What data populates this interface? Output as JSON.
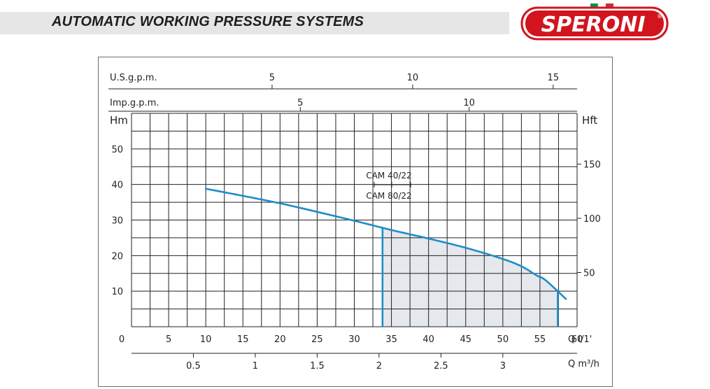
{
  "header": {
    "title": "AUTOMATIC WORKING PRESSURE SYSTEMS",
    "brand": "SPERONI",
    "registered_mark": "®"
  },
  "colors": {
    "curve": "#1f8cc8",
    "grid": "#222222",
    "shade": "#e5e8ec",
    "header_band": "#e6e6e6",
    "logo_red": "#d2141e",
    "flag_green": "#009246",
    "flag_red": "#ce2b37"
  },
  "chart_data": {
    "type": "line",
    "x_axis": {
      "unit_label": "Q l/1'",
      "range": [
        0,
        60
      ],
      "ticks": [
        0,
        5,
        10,
        15,
        20,
        25,
        30,
        35,
        40,
        45,
        50,
        55,
        60
      ]
    },
    "x_axis_m3h": {
      "unit_label": "Q m³/h",
      "ticks": [
        0.5,
        1,
        1.5,
        2,
        2.5,
        3
      ]
    },
    "top_axis_us": {
      "label": "U.S.g.p.m.",
      "ticks": [
        5,
        10,
        15
      ]
    },
    "top_axis_imp": {
      "label": "Imp.g.p.m.",
      "ticks": [
        5,
        10
      ]
    },
    "y_axis": {
      "label": "Hm",
      "range": [
        0,
        60
      ],
      "ticks": [
        10,
        20,
        30,
        40,
        50
      ]
    },
    "y2_axis": {
      "label": "Hft",
      "ticks": [
        50,
        100,
        150
      ]
    },
    "grid": true,
    "series": [
      {
        "x": [
          10,
          15,
          20,
          25,
          30,
          35,
          40,
          45,
          49.8,
          52.5,
          54.5,
          55.8,
          58.5
        ],
        "y": [
          38.8,
          36.8,
          34.7,
          32.3,
          29.8,
          27.2,
          24.8,
          22.2,
          19.2,
          17.0,
          14.5,
          13.0,
          7.8
        ]
      }
    ],
    "operating_range": {
      "x_start": 33.8,
      "x_end": 57.4
    },
    "annotations": {
      "model_top": "CAM 40/22",
      "model_bottom": "CAM 80/22"
    }
  }
}
